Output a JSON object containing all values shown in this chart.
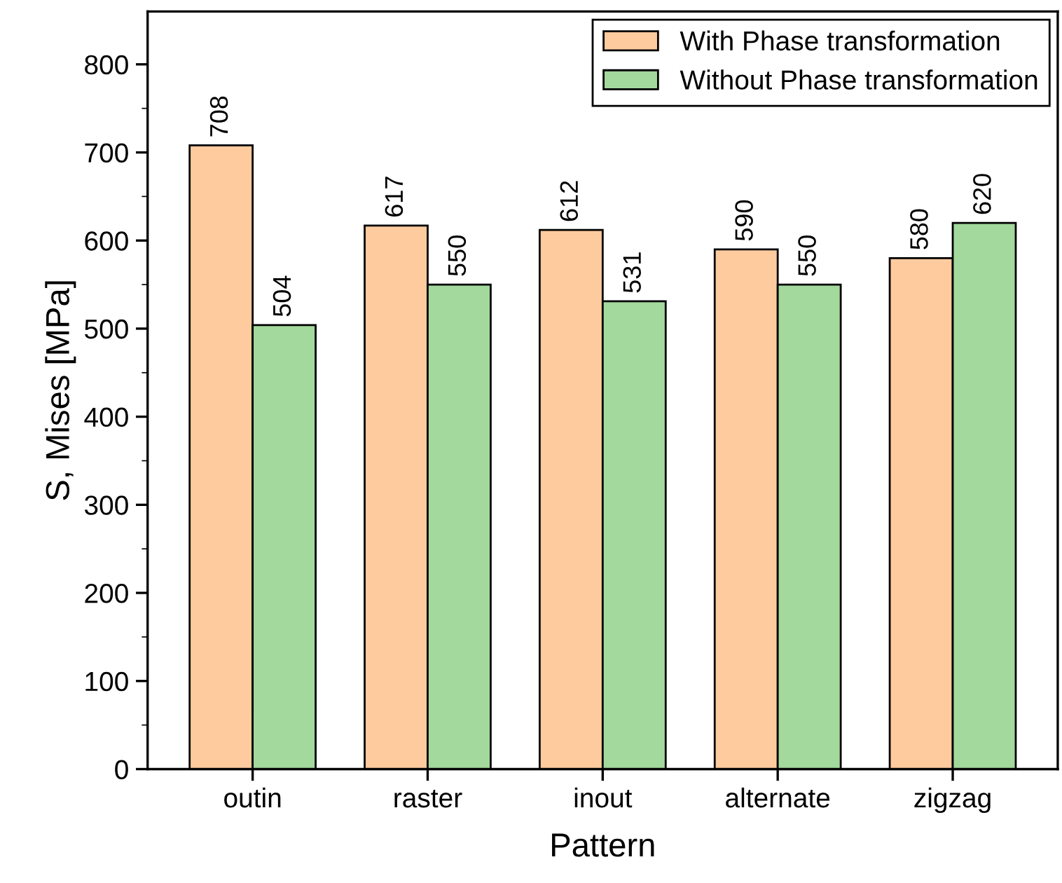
{
  "chart_data": {
    "type": "bar",
    "xlabel": "Pattern",
    "ylabel": "S, Mises [MPa]",
    "categories": [
      "outin",
      "raster",
      "inout",
      "alternate",
      "zigzag"
    ],
    "series": [
      {
        "name": "With Phase transformation",
        "color": "#fdcb9e",
        "values": [
          708,
          617,
          612,
          590,
          580
        ]
      },
      {
        "name": "Without Phase transformation",
        "color": "#a3d99c",
        "values": [
          504,
          550,
          531,
          550,
          620
        ]
      }
    ],
    "ylim": [
      0,
      860
    ],
    "yticks": [
      0,
      100,
      200,
      300,
      400,
      500,
      600,
      700,
      800
    ],
    "data_labels": true,
    "legend": "top right",
    "grid": false
  }
}
